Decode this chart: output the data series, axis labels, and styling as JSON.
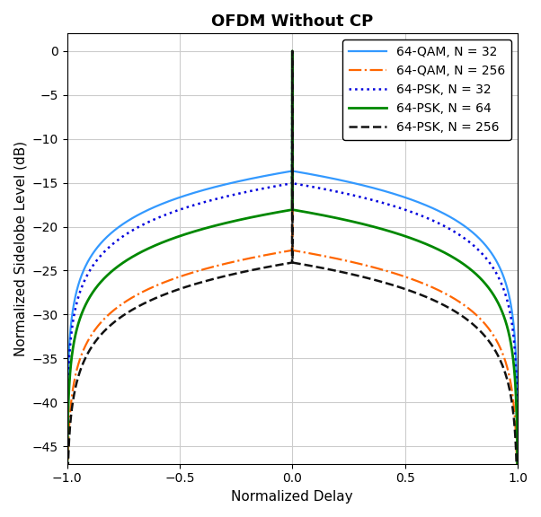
{
  "title": "OFDM Without CP",
  "xlabel": "Normalized Delay",
  "ylabel": "Normalized Sidelobe Level (dB)",
  "xlim": [
    -1,
    1
  ],
  "ylim": [
    -47,
    2
  ],
  "yticks": [
    0,
    -5,
    -10,
    -15,
    -20,
    -25,
    -30,
    -35,
    -40,
    -45
  ],
  "xticks": [
    -1,
    -0.5,
    0,
    0.5,
    1
  ],
  "curves": [
    {
      "label": "64-QAM, N = 32",
      "color": "#3399FF",
      "linestyle": "-",
      "linewidth": 1.6,
      "N": 32,
      "kappa": 1.38
    },
    {
      "label": "64-QAM, N = 256",
      "color": "#FF6600",
      "linestyle": "-.",
      "linewidth": 1.6,
      "N": 256,
      "kappa": 1.38
    },
    {
      "label": "64-PSK, N = 32",
      "color": "#0000DD",
      "linestyle": ":",
      "linewidth": 1.8,
      "N": 32,
      "kappa": 1.0
    },
    {
      "label": "64-PSK, N = 64",
      "color": "#008800",
      "linestyle": "-",
      "linewidth": 2.0,
      "N": 64,
      "kappa": 1.0
    },
    {
      "label": "64-PSK, N = 256",
      "color": "#111111",
      "linestyle": "--",
      "linewidth": 1.8,
      "N": 256,
      "kappa": 1.0
    }
  ],
  "background_color": "#ffffff",
  "grid_color": "#cccccc",
  "title_fontsize": 13,
  "label_fontsize": 11,
  "tick_fontsize": 10,
  "legend_fontsize": 10
}
